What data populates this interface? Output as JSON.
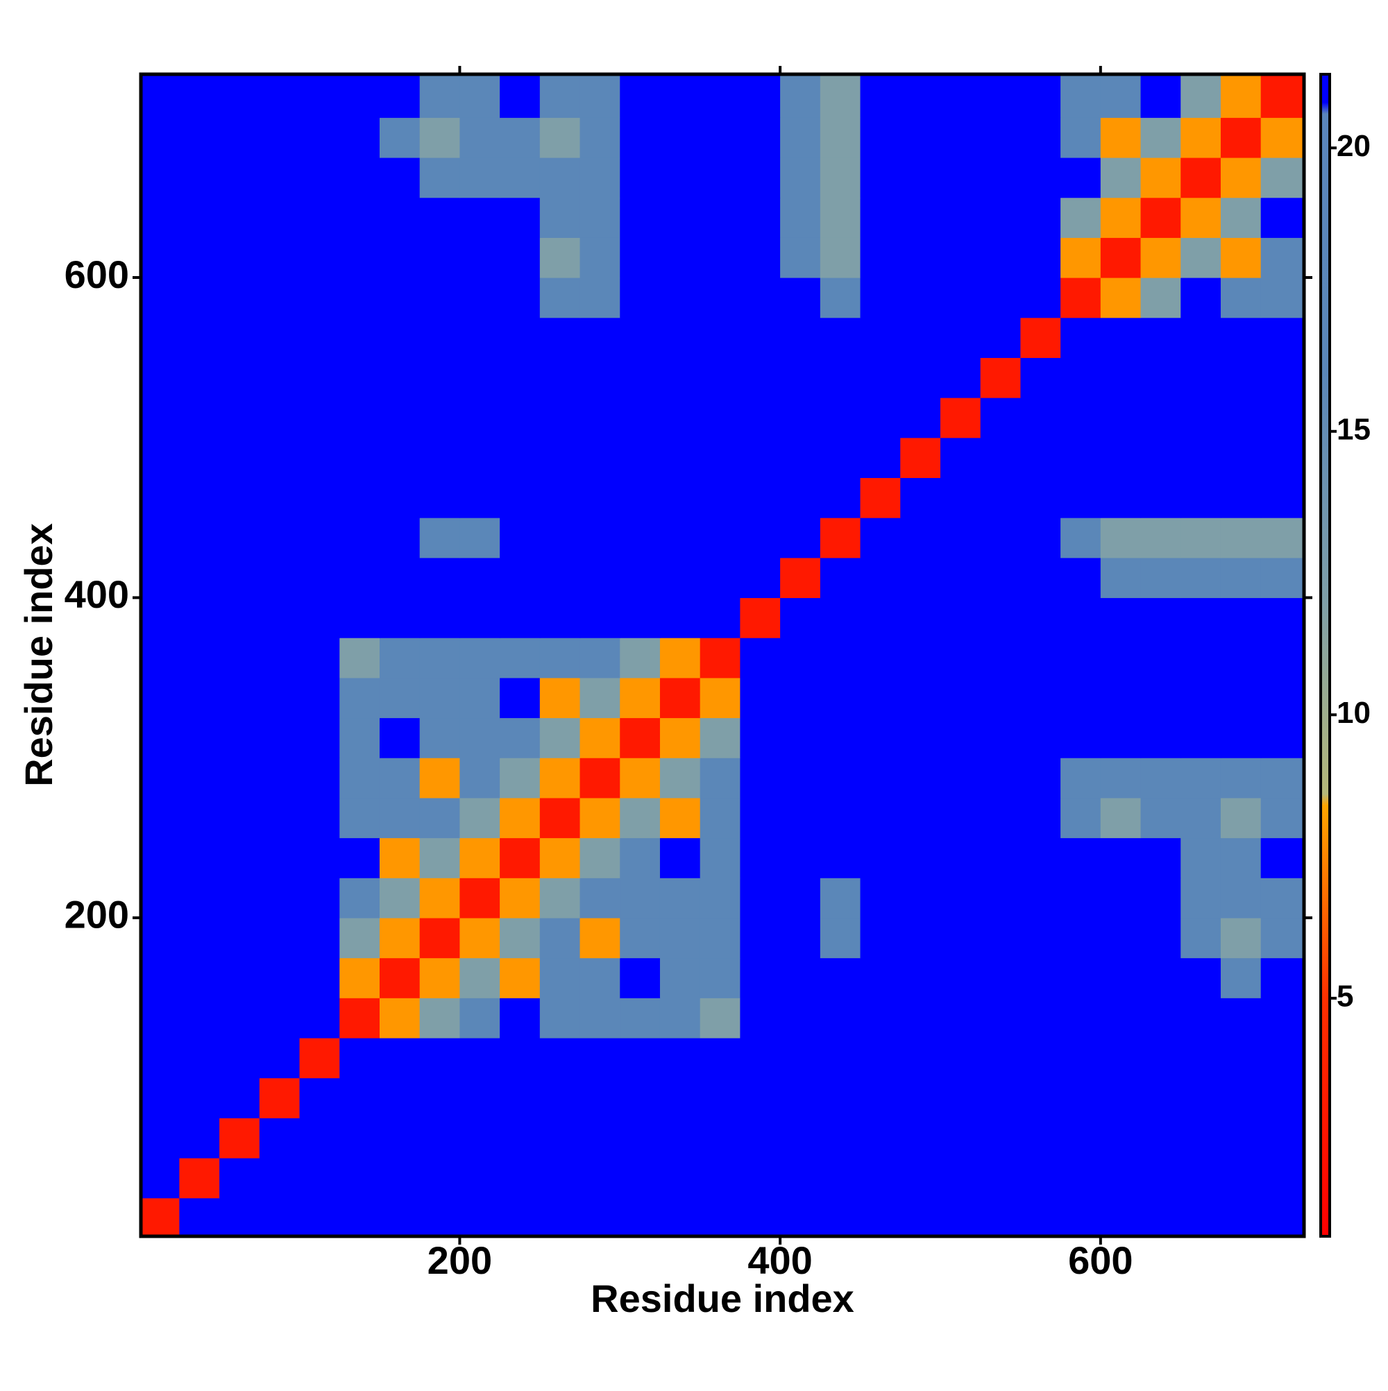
{
  "chart_data": {
    "type": "heatmap",
    "xlabel": "Residue index",
    "ylabel": "Residue index",
    "xlim": [
      1,
      727
    ],
    "ylim": [
      1,
      727
    ],
    "xticks": [
      200,
      400,
      600
    ],
    "yticks": [
      200,
      400,
      600
    ],
    "bin_edges": [
      0,
      25,
      50,
      75,
      100,
      125,
      150,
      175,
      200,
      225,
      250,
      275,
      300,
      325,
      350,
      375,
      400,
      425,
      450,
      475,
      500,
      525,
      550,
      575,
      600,
      625,
      650,
      675,
      700,
      727
    ],
    "clim": [
      0.8,
      21.3
    ],
    "cbar_ticks": [
      5,
      10,
      15,
      20
    ],
    "colorscale": [
      [
        0.8,
        "#ff0000"
      ],
      [
        5,
        "#ff3000"
      ],
      [
        8.4,
        "#ffa500"
      ],
      [
        8.6,
        "#b5b87a"
      ],
      [
        12,
        "#7f9fa8"
      ],
      [
        16,
        "#5b87b8"
      ],
      [
        20.6,
        "#5a86bc"
      ],
      [
        20.8,
        "#0000ff"
      ],
      [
        21.3,
        "#0000ff"
      ]
    ],
    "z": [
      [
        3,
        21,
        21,
        21,
        21,
        21,
        21,
        21,
        21,
        21,
        21,
        21,
        21,
        21,
        21,
        21,
        21,
        21,
        21,
        21,
        21,
        21,
        21,
        21,
        21,
        21,
        21,
        21,
        21
      ],
      [
        21,
        3,
        21,
        21,
        21,
        21,
        21,
        21,
        21,
        21,
        21,
        21,
        21,
        21,
        21,
        21,
        21,
        21,
        21,
        21,
        21,
        21,
        21,
        21,
        21,
        21,
        21,
        21,
        21
      ],
      [
        21,
        21,
        3,
        21,
        21,
        21,
        21,
        21,
        21,
        21,
        21,
        21,
        21,
        21,
        21,
        21,
        21,
        21,
        21,
        21,
        21,
        21,
        21,
        21,
        21,
        21,
        21,
        21,
        21
      ],
      [
        21,
        21,
        21,
        3,
        21,
        21,
        21,
        21,
        21,
        21,
        21,
        21,
        21,
        21,
        21,
        21,
        21,
        21,
        21,
        21,
        21,
        21,
        21,
        21,
        21,
        21,
        21,
        21,
        21
      ],
      [
        21,
        21,
        21,
        21,
        3,
        21,
        21,
        21,
        21,
        21,
        21,
        21,
        21,
        21,
        21,
        21,
        21,
        21,
        21,
        21,
        21,
        21,
        21,
        21,
        21,
        21,
        21,
        21,
        21
      ],
      [
        21,
        21,
        21,
        21,
        21,
        3,
        8,
        12,
        16,
        21,
        16,
        16,
        16,
        16,
        12,
        21,
        21,
        21,
        21,
        21,
        21,
        21,
        21,
        21,
        21,
        21,
        21,
        21,
        21
      ],
      [
        21,
        21,
        21,
        21,
        21,
        8,
        3,
        8,
        12,
        8,
        16,
        16,
        21,
        16,
        16,
        21,
        21,
        21,
        21,
        21,
        21,
        21,
        21,
        21,
        21,
        21,
        21,
        16,
        21
      ],
      [
        21,
        21,
        21,
        21,
        21,
        12,
        8,
        3,
        8,
        12,
        16,
        8,
        16,
        16,
        16,
        21,
        21,
        16,
        21,
        21,
        21,
        21,
        21,
        21,
        21,
        21,
        16,
        12,
        16
      ],
      [
        21,
        21,
        21,
        21,
        21,
        16,
        12,
        8,
        3,
        8,
        12,
        16,
        16,
        16,
        16,
        21,
        21,
        16,
        21,
        21,
        21,
        21,
        21,
        21,
        21,
        21,
        16,
        16,
        16
      ],
      [
        21,
        21,
        21,
        21,
        21,
        21,
        8,
        12,
        8,
        3,
        8,
        12,
        16,
        21,
        16,
        21,
        21,
        21,
        21,
        21,
        21,
        21,
        21,
        21,
        21,
        21,
        16,
        16,
        21
      ],
      [
        21,
        21,
        21,
        21,
        21,
        16,
        16,
        16,
        12,
        8,
        3,
        8,
        12,
        8,
        16,
        21,
        21,
        21,
        21,
        21,
        21,
        21,
        21,
        16,
        12,
        16,
        16,
        12,
        16
      ],
      [
        21,
        21,
        21,
        21,
        21,
        16,
        16,
        8,
        16,
        12,
        8,
        3,
        8,
        12,
        16,
        21,
        21,
        21,
        21,
        21,
        21,
        21,
        21,
        16,
        16,
        16,
        16,
        16,
        16
      ],
      [
        21,
        21,
        21,
        21,
        21,
        16,
        21,
        16,
        16,
        16,
        12,
        8,
        3,
        8,
        12,
        21,
        21,
        21,
        21,
        21,
        21,
        21,
        21,
        21,
        21,
        21,
        21,
        21,
        21
      ],
      [
        21,
        21,
        21,
        21,
        21,
        16,
        16,
        16,
        16,
        21,
        8,
        12,
        8,
        3,
        8,
        21,
        21,
        21,
        21,
        21,
        21,
        21,
        21,
        21,
        21,
        21,
        21,
        21,
        21
      ],
      [
        21,
        21,
        21,
        21,
        21,
        12,
        16,
        16,
        16,
        16,
        16,
        16,
        12,
        8,
        3,
        21,
        21,
        21,
        21,
        21,
        21,
        21,
        21,
        21,
        21,
        21,
        21,
        21,
        21
      ],
      [
        21,
        21,
        21,
        21,
        21,
        21,
        21,
        21,
        21,
        21,
        21,
        21,
        21,
        21,
        21,
        3,
        21,
        21,
        21,
        21,
        21,
        21,
        21,
        21,
        21,
        21,
        21,
        21,
        21
      ],
      [
        21,
        21,
        21,
        21,
        21,
        21,
        21,
        21,
        21,
        21,
        21,
        21,
        21,
        21,
        21,
        21,
        3,
        21,
        21,
        21,
        21,
        21,
        21,
        21,
        16,
        16,
        16,
        16,
        16
      ],
      [
        21,
        21,
        21,
        21,
        21,
        21,
        21,
        16,
        16,
        21,
        21,
        21,
        21,
        21,
        21,
        21,
        21,
        3,
        21,
        21,
        21,
        21,
        21,
        16,
        12,
        12,
        12,
        12,
        12
      ],
      [
        21,
        21,
        21,
        21,
        21,
        21,
        21,
        21,
        21,
        21,
        21,
        21,
        21,
        21,
        21,
        21,
        21,
        21,
        3,
        21,
        21,
        21,
        21,
        21,
        21,
        21,
        21,
        21,
        21
      ],
      [
        21,
        21,
        21,
        21,
        21,
        21,
        21,
        21,
        21,
        21,
        21,
        21,
        21,
        21,
        21,
        21,
        21,
        21,
        21,
        3,
        21,
        21,
        21,
        21,
        21,
        21,
        21,
        21,
        21
      ],
      [
        21,
        21,
        21,
        21,
        21,
        21,
        21,
        21,
        21,
        21,
        21,
        21,
        21,
        21,
        21,
        21,
        21,
        21,
        21,
        21,
        3,
        21,
        21,
        21,
        21,
        21,
        21,
        21,
        21
      ],
      [
        21,
        21,
        21,
        21,
        21,
        21,
        21,
        21,
        21,
        21,
        21,
        21,
        21,
        21,
        21,
        21,
        21,
        21,
        21,
        21,
        21,
        3,
        21,
        21,
        21,
        21,
        21,
        21,
        21
      ],
      [
        21,
        21,
        21,
        21,
        21,
        21,
        21,
        21,
        21,
        21,
        21,
        21,
        21,
        21,
        21,
        21,
        21,
        21,
        21,
        21,
        21,
        21,
        3,
        21,
        21,
        21,
        21,
        21,
        21
      ],
      [
        21,
        21,
        21,
        21,
        21,
        21,
        21,
        21,
        21,
        21,
        16,
        16,
        21,
        21,
        21,
        21,
        21,
        16,
        21,
        21,
        21,
        21,
        21,
        3,
        8,
        12,
        21,
        16,
        16
      ],
      [
        21,
        21,
        21,
        21,
        21,
        21,
        21,
        21,
        21,
        21,
        12,
        16,
        21,
        21,
        21,
        21,
        16,
        12,
        21,
        21,
        21,
        21,
        21,
        8,
        3,
        8,
        12,
        8,
        16
      ],
      [
        21,
        21,
        21,
        21,
        21,
        21,
        21,
        21,
        21,
        21,
        16,
        16,
        21,
        21,
        21,
        21,
        16,
        12,
        21,
        21,
        21,
        21,
        21,
        12,
        8,
        3,
        8,
        12,
        21
      ],
      [
        21,
        21,
        21,
        21,
        21,
        21,
        21,
        16,
        16,
        16,
        16,
        16,
        21,
        21,
        21,
        21,
        16,
        12,
        21,
        21,
        21,
        21,
        21,
        21,
        12,
        8,
        3,
        8,
        12
      ],
      [
        21,
        21,
        21,
        21,
        21,
        21,
        16,
        12,
        16,
        16,
        12,
        16,
        21,
        21,
        21,
        21,
        16,
        12,
        21,
        21,
        21,
        21,
        21,
        16,
        8,
        12,
        8,
        3,
        8
      ],
      [
        21,
        21,
        21,
        21,
        21,
        21,
        21,
        16,
        16,
        21,
        16,
        16,
        21,
        21,
        21,
        21,
        16,
        12,
        21,
        21,
        21,
        21,
        21,
        16,
        16,
        21,
        12,
        8,
        3
      ]
    ]
  }
}
